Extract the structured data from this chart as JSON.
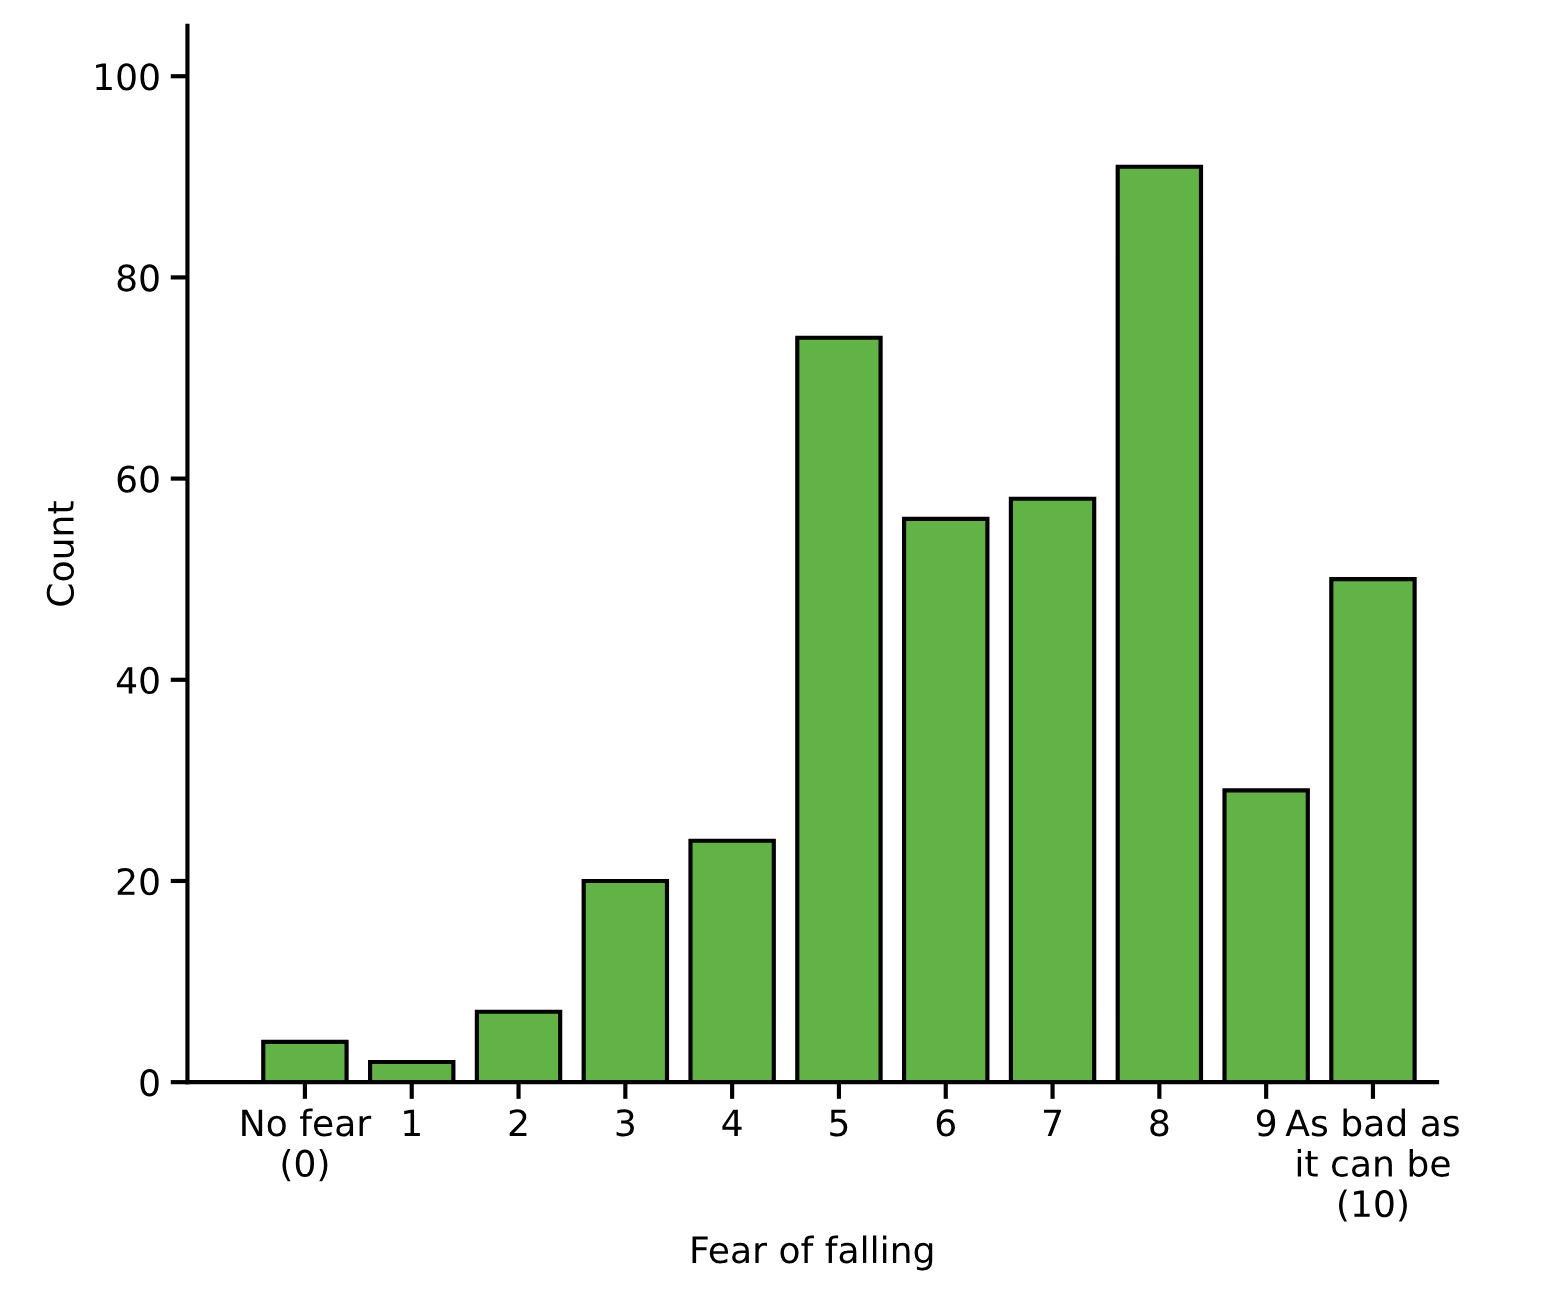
{
  "chart_data": {
    "type": "bar",
    "xlabel": "Fear of falling",
    "ylabel": "Count",
    "categories": [
      "No fear\n(0)",
      "1",
      "2",
      "3",
      "4",
      "5",
      "6",
      "7",
      "8",
      "9",
      "As bad as\nit can be\n(10)"
    ],
    "values": [
      4,
      2,
      7,
      20,
      24,
      74,
      56,
      58,
      91,
      29,
      50
    ],
    "color": "#62b346",
    "ylim": [
      0,
      105
    ],
    "yticks": [
      0,
      20,
      40,
      60,
      80,
      100
    ],
    "grid": false
  }
}
